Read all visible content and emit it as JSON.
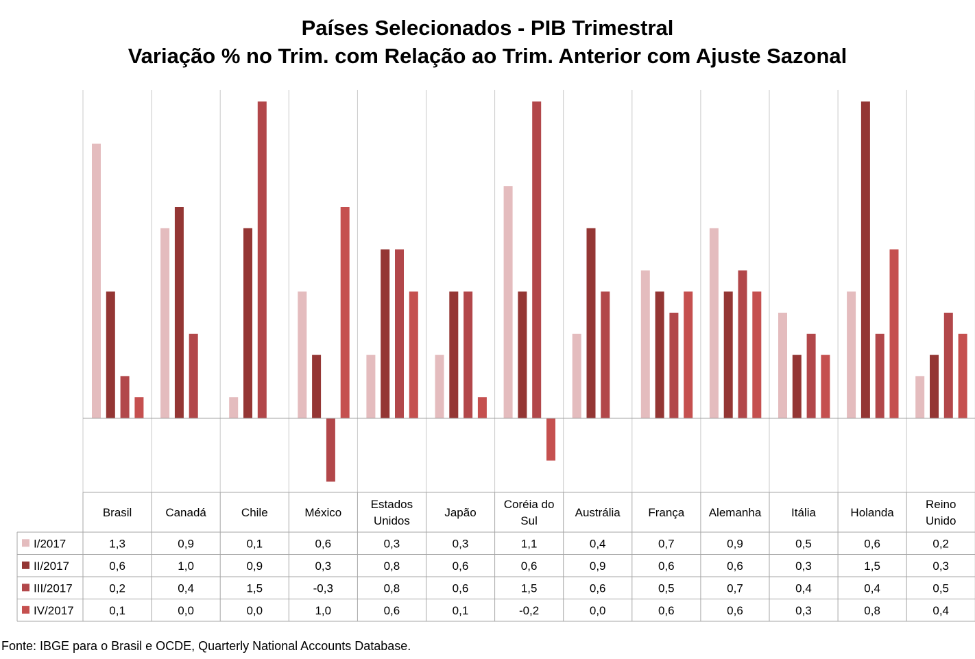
{
  "chart_data": {
    "type": "bar",
    "title": "Países Selecionados - PIB Trimestral",
    "subtitle": "Variação % no Trim. com Relação ao Trim. Anterior com Ajuste Sazonal",
    "categories": [
      [
        "Brasil"
      ],
      [
        "Canadá"
      ],
      [
        "Chile"
      ],
      [
        "México"
      ],
      [
        "Estados",
        "Unidos"
      ],
      [
        "Japão"
      ],
      [
        "Coréia do",
        "Sul"
      ],
      [
        "Austrália"
      ],
      [
        "França"
      ],
      [
        "Alemanha"
      ],
      [
        "Itália"
      ],
      [
        "Holanda"
      ],
      [
        "Reino",
        "Unido"
      ]
    ],
    "series": [
      {
        "name": "I/2017",
        "color": "#e4bcbe",
        "values": [
          1.3,
          0.9,
          0.1,
          0.6,
          0.3,
          0.3,
          1.1,
          0.4,
          0.7,
          0.9,
          0.5,
          0.6,
          0.2
        ],
        "labels": [
          "1,3",
          "0,9",
          "0,1",
          "0,6",
          "0,3",
          "0,3",
          "1,1",
          "0,4",
          "0,7",
          "0,9",
          "0,5",
          "0,6",
          "0,2"
        ]
      },
      {
        "name": "II/2017",
        "color": "#943634",
        "values": [
          0.6,
          1.0,
          0.9,
          0.3,
          0.8,
          0.6,
          0.6,
          0.9,
          0.6,
          0.6,
          0.3,
          1.5,
          0.3
        ],
        "labels": [
          "0,6",
          "1,0",
          "0,9",
          "0,3",
          "0,8",
          "0,6",
          "0,6",
          "0,9",
          "0,6",
          "0,6",
          "0,3",
          "1,5",
          "0,3"
        ]
      },
      {
        "name": "III/2017",
        "color": "#b2474a",
        "values": [
          0.2,
          0.4,
          1.5,
          -0.3,
          0.8,
          0.6,
          1.5,
          0.6,
          0.5,
          0.7,
          0.4,
          0.4,
          0.5
        ],
        "labels": [
          "0,2",
          "0,4",
          "1,5",
          "-0,3",
          "0,8",
          "0,6",
          "1,5",
          "0,6",
          "0,5",
          "0,7",
          "0,4",
          "0,4",
          "0,5"
        ]
      },
      {
        "name": "IV/2017",
        "color": "#c5504f",
        "values": [
          0.1,
          0.0,
          0.0,
          1.0,
          0.6,
          0.1,
          -0.2,
          0.0,
          0.6,
          0.6,
          0.3,
          0.8,
          0.4
        ],
        "labels": [
          "0,1",
          "0,0",
          "0,0",
          "1,0",
          "0,6",
          "0,1",
          "-0,2",
          "0,0",
          "0,6",
          "0,6",
          "0,3",
          "0,8",
          "0,4"
        ]
      }
    ],
    "ylim": [
      -0.35,
      1.55
    ],
    "grid": "vertical category separators",
    "legend": "data-table"
  },
  "source": "Fonte: IBGE para o Brasil e OCDE, Quarterly National Accounts Database."
}
